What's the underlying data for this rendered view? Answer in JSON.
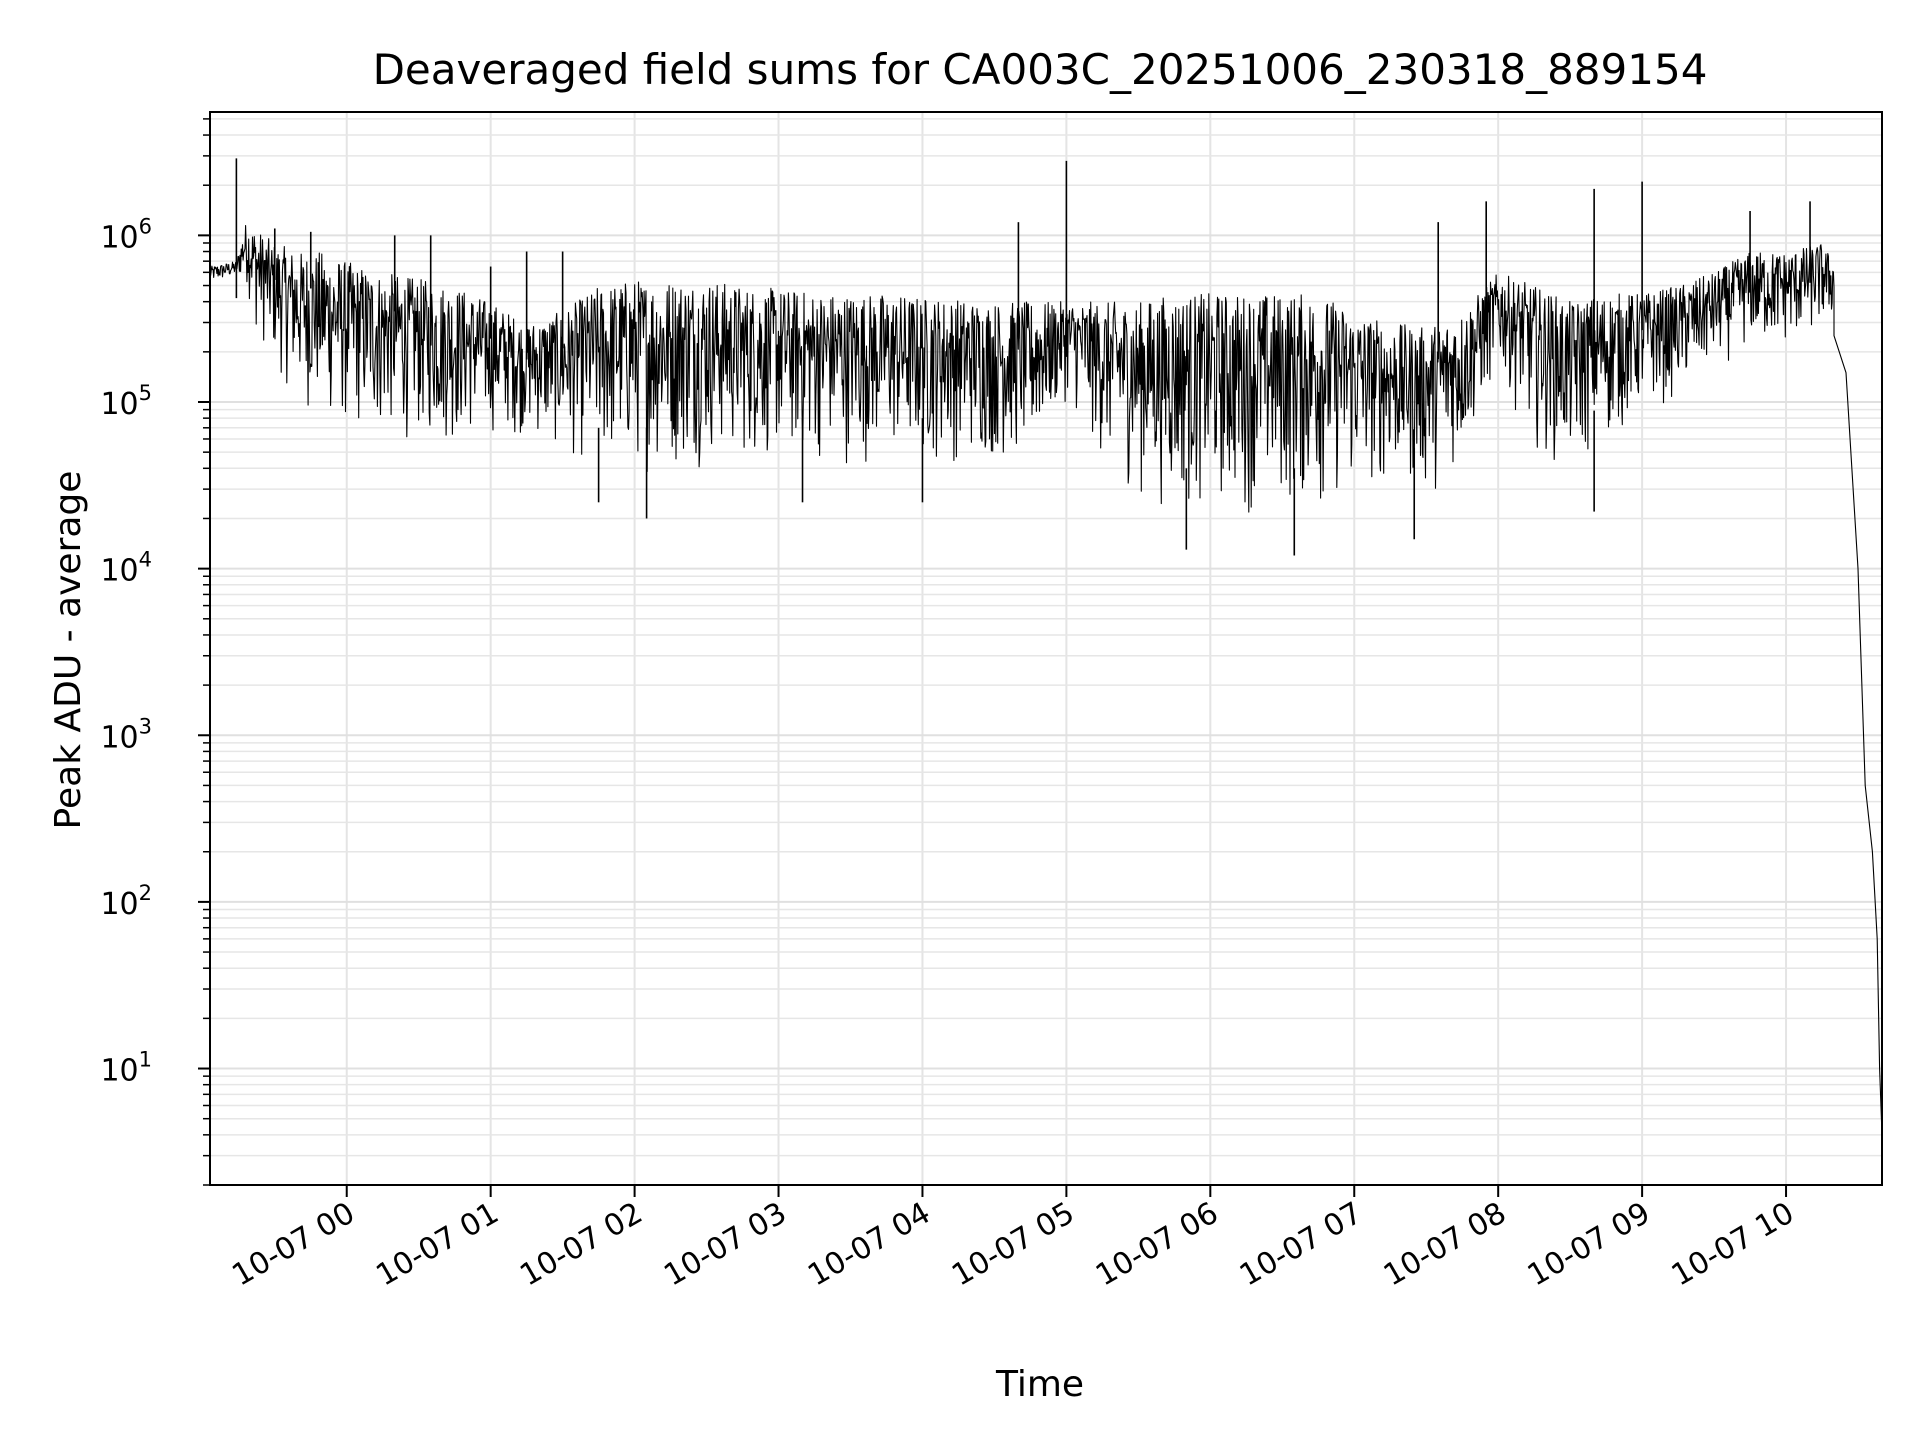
{
  "chart_data": {
    "type": "line",
    "title": "Deaveraged field sums for CA003C_20251006_230318_889154",
    "xlabel": "Time",
    "ylabel": "Peak ADU - average",
    "yscale": "log",
    "ylim": [
      2,
      5500000
    ],
    "xlim": [
      "2025-10-06 23:03",
      "2025-10-07 10:40"
    ],
    "grid": true,
    "x_ticks": [
      {
        "label": "10-07 00",
        "at": "2025-10-07 00:00"
      },
      {
        "label": "10-07 01",
        "at": "2025-10-07 01:00"
      },
      {
        "label": "10-07 02",
        "at": "2025-10-07 02:00"
      },
      {
        "label": "10-07 03",
        "at": "2025-10-07 03:00"
      },
      {
        "label": "10-07 04",
        "at": "2025-10-07 04:00"
      },
      {
        "label": "10-07 05",
        "at": "2025-10-07 05:00"
      },
      {
        "label": "10-07 06",
        "at": "2025-10-07 06:00"
      },
      {
        "label": "10-07 07",
        "at": "2025-10-07 07:00"
      },
      {
        "label": "10-07 08",
        "at": "2025-10-07 08:00"
      },
      {
        "label": "10-07 09",
        "at": "2025-10-07 09:00"
      },
      {
        "label": "10-07 10",
        "at": "2025-10-07 10:00"
      }
    ],
    "y_ticks": [
      {
        "base": "10",
        "exp": "1",
        "value": 10
      },
      {
        "base": "10",
        "exp": "2",
        "value": 100
      },
      {
        "base": "10",
        "exp": "3",
        "value": 1000
      },
      {
        "base": "10",
        "exp": "4",
        "value": 10000
      },
      {
        "base": "10",
        "exp": "5",
        "value": 100000
      },
      {
        "base": "10",
        "exp": "6",
        "value": 1000000
      }
    ],
    "series": [
      {
        "color": "#000000",
        "envelope": {
          "x": [
            "2025-10-06 23:03",
            "2025-10-06 23:14",
            "2025-10-06 23:18",
            "2025-10-06 23:22",
            "2025-10-06 23:30",
            "2025-10-06 23:40",
            "2025-10-06 23:50",
            "2025-10-07 00:00",
            "2025-10-07 00:15",
            "2025-10-07 00:30",
            "2025-10-07 00:45",
            "2025-10-07 01:00",
            "2025-10-07 01:15",
            "2025-10-07 01:30",
            "2025-10-07 01:45",
            "2025-10-07 02:00",
            "2025-10-07 02:15",
            "2025-10-07 02:30",
            "2025-10-07 02:45",
            "2025-10-07 03:00",
            "2025-10-07 03:15",
            "2025-10-07 03:30",
            "2025-10-07 03:45",
            "2025-10-07 04:00",
            "2025-10-07 04:15",
            "2025-10-07 04:30",
            "2025-10-07 04:45",
            "2025-10-07 05:00",
            "2025-10-07 05:15",
            "2025-10-07 05:30",
            "2025-10-07 05:45",
            "2025-10-07 06:00",
            "2025-10-07 06:15",
            "2025-10-07 06:30",
            "2025-10-07 06:45",
            "2025-10-07 07:00",
            "2025-10-07 07:15",
            "2025-10-07 07:30",
            "2025-10-07 07:45",
            "2025-10-07 08:00",
            "2025-10-07 08:15",
            "2025-10-07 08:30",
            "2025-10-07 08:45",
            "2025-10-07 09:00",
            "2025-10-07 09:15",
            "2025-10-07 09:30",
            "2025-10-07 09:45",
            "2025-10-07 10:00",
            "2025-10-07 10:15",
            "2025-10-07 10:20"
          ],
          "upper": [
            650000,
            700000,
            1200000,
            1100000,
            900000,
            800000,
            800000,
            700000,
            600000,
            550000,
            500000,
            400000,
            300000,
            350000,
            500000,
            550000,
            550000,
            550000,
            500000,
            480000,
            460000,
            450000,
            450000,
            430000,
            420000,
            400000,
            400000,
            400000,
            400000,
            400000,
            450000,
            450000,
            450000,
            450000,
            450000,
            350000,
            300000,
            280000,
            350000,
            600000,
            500000,
            400000,
            450000,
            450000,
            500000,
            600000,
            800000,
            800000,
            900000,
            700000
          ],
          "lower": [
            500000,
            550000,
            500000,
            250000,
            150000,
            90000,
            70000,
            60000,
            55000,
            55000,
            50000,
            60000,
            60000,
            45000,
            35000,
            35000,
            35000,
            40000,
            40000,
            40000,
            40000,
            40000,
            40000,
            40000,
            40000,
            40000,
            40000,
            100000,
            40000,
            25000,
            20000,
            20000,
            20000,
            20000,
            20000,
            25000,
            30000,
            25000,
            40000,
            150000,
            50000,
            35000,
            50000,
            80000,
            100000,
            150000,
            200000,
            200000,
            250000,
            300000
          ]
        },
        "spikes": [
          {
            "x": "2025-10-06 23:14",
            "y": 2900000
          },
          {
            "x": "2025-10-06 23:30",
            "y": 1100000
          },
          {
            "x": "2025-10-06 23:45",
            "y": 1050000
          },
          {
            "x": "2025-10-07 00:20",
            "y": 1000000
          },
          {
            "x": "2025-10-07 00:35",
            "y": 1000000
          },
          {
            "x": "2025-10-07 01:00",
            "y": 650000
          },
          {
            "x": "2025-10-07 01:15",
            "y": 800000
          },
          {
            "x": "2025-10-07 01:30",
            "y": 800000
          },
          {
            "x": "2025-10-07 04:40",
            "y": 1200000
          },
          {
            "x": "2025-10-07 05:00",
            "y": 2800000
          },
          {
            "x": "2025-10-07 07:35",
            "y": 1200000
          },
          {
            "x": "2025-10-07 07:55",
            "y": 1600000
          },
          {
            "x": "2025-10-07 08:40",
            "y": 1900000
          },
          {
            "x": "2025-10-07 09:00",
            "y": 2100000
          },
          {
            "x": "2025-10-07 09:45",
            "y": 1400000
          },
          {
            "x": "2025-10-07 10:10",
            "y": 1600000
          }
        ],
        "dips": [
          {
            "x": "2025-10-07 01:45",
            "y": 25000
          },
          {
            "x": "2025-10-07 02:05",
            "y": 20000
          },
          {
            "x": "2025-10-07 03:10",
            "y": 25000
          },
          {
            "x": "2025-10-07 04:00",
            "y": 25000
          },
          {
            "x": "2025-10-07 05:50",
            "y": 13000
          },
          {
            "x": "2025-10-07 06:35",
            "y": 12000
          },
          {
            "x": "2025-10-07 07:25",
            "y": 15000
          },
          {
            "x": "2025-10-07 08:40",
            "y": 22000
          }
        ],
        "tail": {
          "x": [
            "2025-10-07 10:20",
            "2025-10-07 10:25",
            "2025-10-07 10:30",
            "2025-10-07 10:33",
            "2025-10-07 10:36",
            "2025-10-07 10:38",
            "2025-10-07 10:39",
            "2025-10-07 10:40"
          ],
          "y": [
            250000,
            150000,
            10000,
            500,
            200,
            60,
            10,
            4
          ]
        }
      }
    ]
  }
}
